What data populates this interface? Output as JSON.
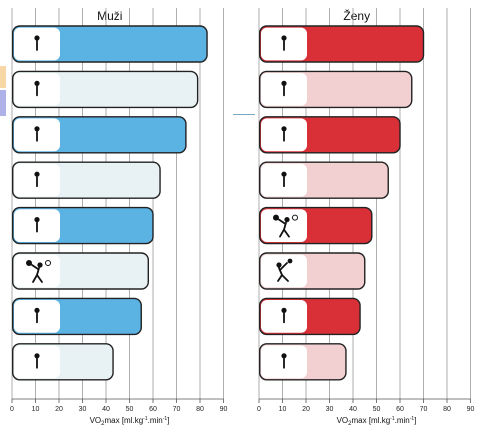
{
  "chart_data": [
    {
      "type": "bar",
      "orientation": "horizontal",
      "title": "Muži",
      "xlabel_main": "VO",
      "xlabel_sub": "2",
      "xlabel_rest": "max [ml.kg",
      "xlabel_exp1": "-1",
      "xlabel_mid": ".min",
      "xlabel_exp2": "-1",
      "xlabel_end": "]",
      "xlim": [
        0,
        90
      ],
      "xticks": [
        "0",
        "10",
        "20",
        "30",
        "40",
        "50",
        "60",
        "70",
        "80",
        "90"
      ],
      "grid": true,
      "categories": [
        "cross-country-skiing",
        "running",
        "cycling",
        "swimming",
        "football",
        "volleyball",
        "weightlifting",
        "wrestling"
      ],
      "values": [
        83,
        79,
        74,
        63,
        60,
        58,
        55,
        43
      ],
      "fill_mode": [
        "colored",
        "light",
        "colored",
        "light",
        "colored",
        "light",
        "colored",
        "light"
      ]
    },
    {
      "type": "bar",
      "orientation": "horizontal",
      "title": "Ženy",
      "xlabel_main": "VO",
      "xlabel_sub": "2",
      "xlabel_rest": "max [ml.kg",
      "xlabel_exp1": "-1",
      "xlabel_mid": ".min",
      "xlabel_exp2": "-1",
      "xlabel_end": "]",
      "xlim": [
        0,
        90
      ],
      "xticks": [
        "0",
        "10",
        "20",
        "30",
        "40",
        "50",
        "60",
        "70",
        "80",
        "90"
      ],
      "grid": true,
      "categories": [
        "cross-country-skiing",
        "running",
        "cycling",
        "swimming",
        "volleyball",
        "handball",
        "gymnastics",
        "wrestling"
      ],
      "values": [
        70,
        65,
        60,
        55,
        48,
        45,
        43,
        37
      ],
      "fill_mode": [
        "colored",
        "light",
        "colored",
        "light",
        "colored",
        "light",
        "colored",
        "light"
      ]
    }
  ],
  "colors": {
    "men_bar": "#5bb3e4",
    "men_light": "#e8f1f3",
    "women_bar": "#d93038",
    "women_light": "#f2d0d2",
    "edge_orange": "#f6d7a5",
    "edge_purple": "#aeb2e8",
    "accent_line": "#7aa7c2"
  },
  "icons": [
    "skier-icon",
    "runner-icon",
    "cyclist-icon",
    "swimmer-icon",
    "footballer-icon",
    "volleyball-icon",
    "weightlifter-icon",
    "wrestlers-icon",
    "handball-icon",
    "gymnast-icon"
  ]
}
